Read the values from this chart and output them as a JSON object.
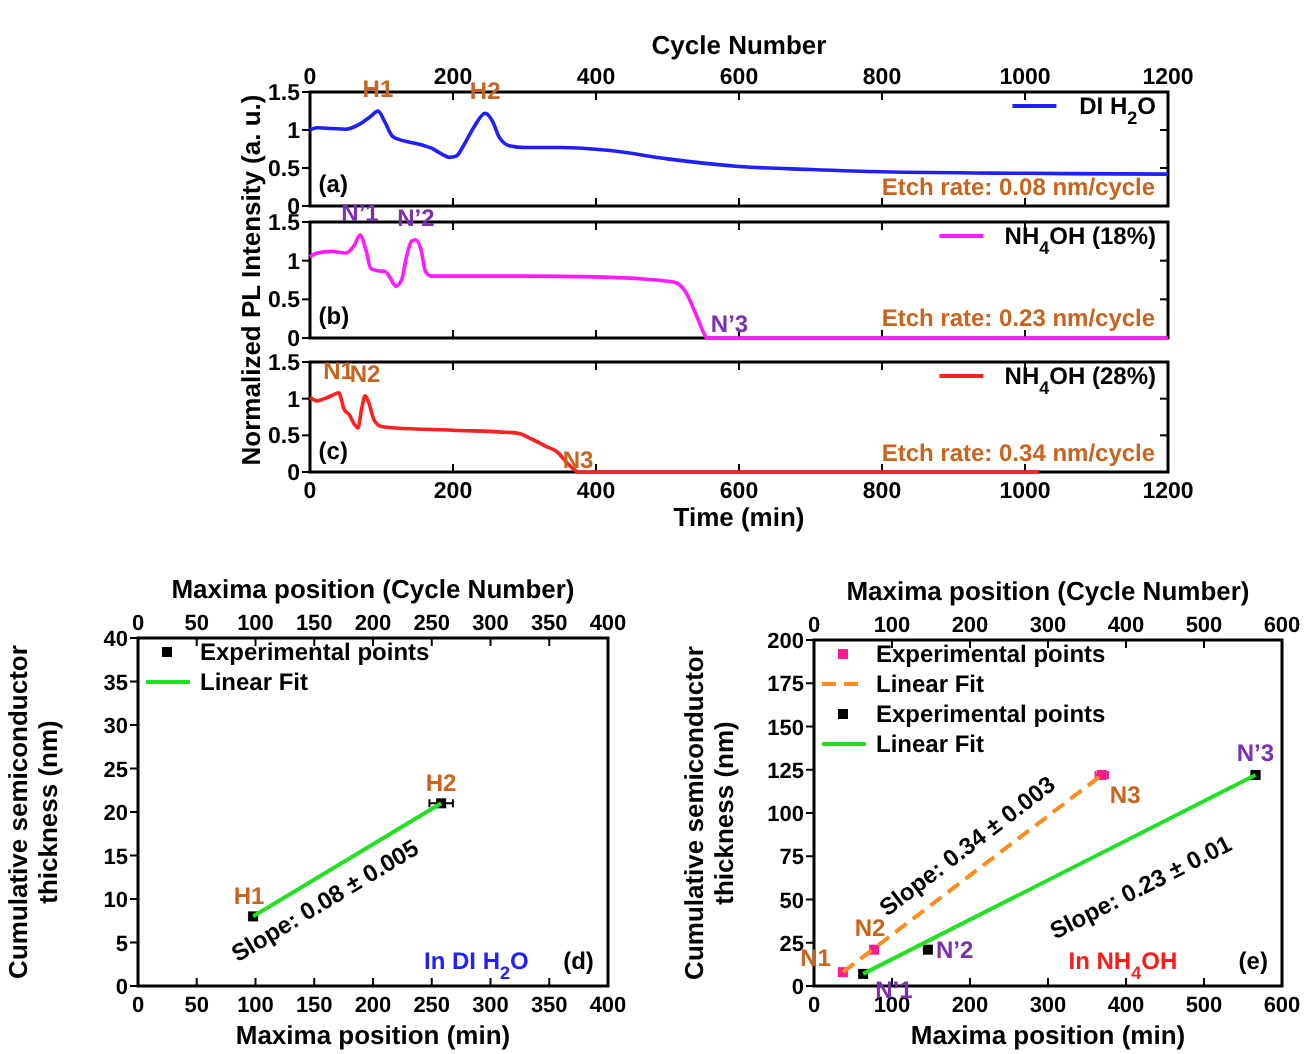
{
  "chart_data": [
    {
      "type": "line",
      "x2label": "Cycle Number",
      "x2lim": [
        0,
        1200
      ],
      "x2ticks": [
        0,
        200,
        400,
        600,
        800,
        1000,
        1200
      ],
      "xlim": [
        0,
        1200
      ],
      "xticks": [
        0,
        200,
        400,
        600,
        800,
        1000,
        1200
      ],
      "ylim": [
        0,
        1.5
      ],
      "yticks": [
        0,
        0.5,
        1,
        1.5
      ],
      "tick_labels": "y",
      "legend": "top right",
      "series": [
        {
          "name": "DI H$_{2}$O",
          "color": "#1f1fff",
          "x": [
            0,
            10,
            30,
            50,
            70,
            85,
            95,
            105,
            115,
            130,
            150,
            170,
            185,
            195,
            205,
            215,
            230,
            245,
            255,
            265,
            280,
            300,
            350,
            420,
            500,
            600,
            700,
            800,
            1000,
            1200
          ],
          "values": [
            1.0,
            1.03,
            1.02,
            1.01,
            1.08,
            1.18,
            1.25,
            1.1,
            0.92,
            0.86,
            0.82,
            0.76,
            0.68,
            0.64,
            0.66,
            0.8,
            1.05,
            1.22,
            1.12,
            0.9,
            0.79,
            0.77,
            0.77,
            0.73,
            0.62,
            0.52,
            0.48,
            0.45,
            0.43,
            0.42
          ]
        }
      ],
      "annotations": [
        {
          "text": "H1",
          "x": 95,
          "y": 1.25
        },
        {
          "text": "H2",
          "x": 245,
          "y": 1.22
        },
        "(a)",
        "Etch rate: 0.08 nm/cycle"
      ]
    },
    {
      "type": "line",
      "ylabel": "Normalized PL Intensity (a. u.)",
      "xlim": [
        0,
        1200
      ],
      "xticks": [
        0,
        200,
        400,
        600,
        800,
        1000,
        1200
      ],
      "ylim": [
        0,
        1.5
      ],
      "yticks": [
        0,
        0.5,
        1,
        1.5
      ],
      "tick_labels": "y",
      "legend": "top right",
      "series": [
        {
          "name": "NH$_{4}$OH (18%)",
          "color": "#ff1aff",
          "x": [
            0,
            10,
            30,
            50,
            62,
            70,
            78,
            85,
            95,
            105,
            112,
            120,
            128,
            135,
            142,
            148,
            155,
            162,
            170,
            200,
            300,
            400,
            470,
            510,
            525,
            540,
            550,
            555,
            600,
            800,
            1000,
            1200
          ],
          "values": [
            1.05,
            1.1,
            1.12,
            1.1,
            1.2,
            1.33,
            1.15,
            0.9,
            0.87,
            0.86,
            0.78,
            0.67,
            0.75,
            1.05,
            1.25,
            1.27,
            1.15,
            0.85,
            0.8,
            0.8,
            0.8,
            0.79,
            0.76,
            0.72,
            0.6,
            0.3,
            0.08,
            0,
            0,
            0,
            0,
            0
          ]
        }
      ],
      "annotations": [
        {
          "text": "N’1",
          "x": 70,
          "y": 1.33
        },
        {
          "text": "N’2",
          "x": 148,
          "y": 1.27
        },
        {
          "text": "N’3",
          "x": 555,
          "y": 0
        },
        "(b)",
        "Etch rate: 0.23 nm/cycle"
      ]
    },
    {
      "type": "line",
      "xlabel": "Time (min)",
      "xlim": [
        0,
        1200
      ],
      "xticks": [
        0,
        200,
        400,
        600,
        800,
        1000,
        1200
      ],
      "ylim": [
        0,
        1.5
      ],
      "yticks": [
        0,
        0.5,
        1,
        1.5
      ],
      "legend": "top right",
      "series": [
        {
          "name": "NH$_{4}$OH (28%)",
          "color": "#ff2020",
          "x": [
            0,
            10,
            20,
            30,
            40,
            48,
            55,
            62,
            67,
            72,
            77,
            82,
            90,
            100,
            120,
            200,
            290,
            310,
            330,
            345,
            360,
            370,
            375,
            600,
            800,
            1020
          ],
          "values": [
            1.02,
            0.97,
            1.0,
            1.04,
            1.08,
            0.85,
            0.78,
            0.65,
            0.6,
            0.85,
            1.04,
            0.95,
            0.7,
            0.62,
            0.6,
            0.57,
            0.53,
            0.45,
            0.35,
            0.28,
            0.12,
            0.03,
            0,
            0,
            0,
            0
          ]
        }
      ],
      "annotations": [
        {
          "text": "N1",
          "x": 40,
          "y": 1.08
        },
        {
          "text": "N2",
          "x": 77,
          "y": 1.04
        },
        {
          "text": "N3",
          "x": 375,
          "y": 0
        },
        "(c)",
        "Etch rate: 0.34 nm/cycle"
      ]
    },
    {
      "type": "scatter",
      "xlabel": "Maxima position (min)",
      "x2label": "Maxima position (Cycle Number)",
      "ylabel": "Cumulative semiconductor thickness (nm)",
      "xlim": [
        0,
        400
      ],
      "xticks": [
        0,
        50,
        100,
        150,
        200,
        250,
        300,
        350,
        400
      ],
      "x2lim": [
        0,
        400
      ],
      "x2ticks": [
        0,
        50,
        100,
        150,
        200,
        250,
        300,
        350,
        400
      ],
      "ylim": [
        0,
        40
      ],
      "yticks": [
        0,
        5,
        10,
        15,
        20,
        25,
        30,
        35,
        40
      ],
      "legend": "top left",
      "series": [
        {
          "name": "Experimental points",
          "type": "scatter",
          "marker": "square",
          "color": "#000000",
          "x": [
            98,
            258
          ],
          "values": [
            8,
            21
          ],
          "xerrors": [
            3,
            10
          ]
        },
        {
          "name": "Linear Fit",
          "type": "line",
          "line_style": "solid",
          "color": "#22e022",
          "x": [
            98,
            258
          ],
          "values": [
            8,
            21
          ]
        }
      ],
      "annotations": [
        {
          "text": "H1",
          "x": 98,
          "y": 8
        },
        {
          "text": "H2",
          "x": 258,
          "y": 21
        },
        "Slope: 0.08 ± 0.005",
        "In DI H$_{2}$O",
        "(d)"
      ]
    },
    {
      "type": "scatter",
      "xlabel": "Maxima position (min)",
      "x2label": "Maxima position (Cycle Number)",
      "ylabel": "Cumulative semiconductor thickness (nm)",
      "xlim": [
        0,
        600
      ],
      "xticks": [
        0,
        100,
        200,
        300,
        400,
        500,
        600
      ],
      "x2lim": [
        0,
        600
      ],
      "x2ticks": [
        0,
        100,
        200,
        300,
        400,
        500,
        600
      ],
      "ylim": [
        0,
        200
      ],
      "yticks": [
        0,
        25,
        50,
        75,
        100,
        125,
        150,
        175,
        200
      ],
      "legend": "top left",
      "series": [
        {
          "name": "Experimental points",
          "type": "scatter",
          "marker": "square",
          "color": "#ff1a8c",
          "x": [
            37,
            77,
            369
          ],
          "values": [
            8,
            21,
            122
          ],
          "xerrors": [
            3,
            3,
            8
          ]
        },
        {
          "name": "Linear Fit",
          "type": "line",
          "line_style": "dashed",
          "color": "#ff8c1a",
          "x": [
            37,
            369
          ],
          "values": [
            8,
            122
          ]
        },
        {
          "name": "Experimental points",
          "type": "scatter",
          "marker": "square",
          "color": "#000000",
          "x": [
            63,
            146,
            566
          ],
          "values": [
            7,
            21,
            122
          ],
          "xerrors": [
            3,
            3,
            5
          ]
        },
        {
          "name": "Linear Fit",
          "type": "line",
          "line_style": "solid",
          "color": "#22e022",
          "x": [
            63,
            566
          ],
          "values": [
            7,
            122
          ]
        }
      ],
      "annotations": [
        {
          "text": "N1",
          "x": 37,
          "y": 8
        },
        {
          "text": "N2",
          "x": 77,
          "y": 21
        },
        {
          "text": "N3",
          "x": 369,
          "y": 122
        },
        {
          "text": "N’1",
          "x": 63,
          "y": 7
        },
        {
          "text": "N’2",
          "x": 146,
          "y": 21
        },
        {
          "text": "N’3",
          "x": 566,
          "y": 122
        },
        "Slope: 0.34 ± 0.003",
        "Slope: 0.23 ± 0.01",
        "In NH$_{4}$OH",
        "(e)"
      ]
    }
  ]
}
